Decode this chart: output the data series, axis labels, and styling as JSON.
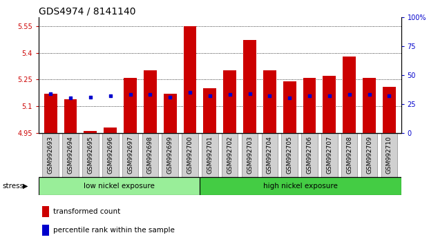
{
  "title": "GDS4974 / 8141140",
  "samples": [
    "GSM992693",
    "GSM992694",
    "GSM992695",
    "GSM992696",
    "GSM992697",
    "GSM992698",
    "GSM992699",
    "GSM992700",
    "GSM992701",
    "GSM992702",
    "GSM992703",
    "GSM992704",
    "GSM992705",
    "GSM992706",
    "GSM992707",
    "GSM992708",
    "GSM992709",
    "GSM992710"
  ],
  "transformed_count": [
    5.17,
    5.14,
    4.96,
    4.98,
    5.26,
    5.3,
    5.17,
    5.55,
    5.2,
    5.3,
    5.47,
    5.3,
    5.24,
    5.26,
    5.27,
    5.38,
    5.26,
    5.21
  ],
  "percentile_rank": [
    34,
    30,
    31,
    32,
    33,
    33,
    31,
    35,
    32,
    33,
    34,
    32,
    30,
    32,
    32,
    33,
    33,
    32
  ],
  "bar_bottom": 4.95,
  "y_min": 4.95,
  "y_max": 5.6,
  "y_ticks": [
    4.95,
    5.1,
    5.25,
    5.4,
    5.55
  ],
  "right_y_ticks": [
    0,
    25,
    50,
    75,
    100
  ],
  "right_y_labels": [
    "0",
    "25",
    "50",
    "75",
    "100%"
  ],
  "bar_color": "#cc0000",
  "dot_color": "#0000cc",
  "low_nickel_samples": 8,
  "group_low_label": "low nickel exposure",
  "group_high_label": "high nickel exposure",
  "group_low_color": "#99ee99",
  "group_high_color": "#44cc44",
  "stress_label": "stress",
  "legend_bar": "transformed count",
  "legend_dot": "percentile rank within the sample",
  "title_fontsize": 10,
  "tick_fontsize": 7,
  "axis_label_color_left": "#cc0000",
  "axis_label_color_right": "#0000cc",
  "bar_width": 0.65,
  "xtick_bg": "#d0d0d0"
}
